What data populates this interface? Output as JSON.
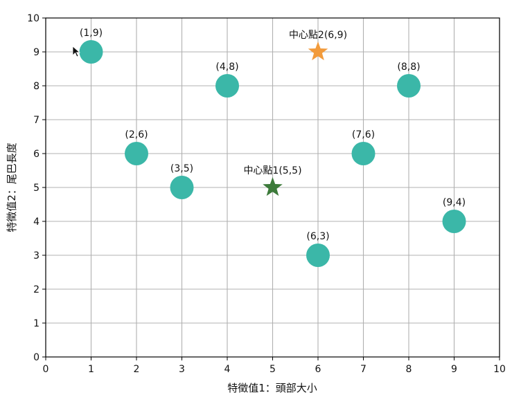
{
  "chart_data": {
    "type": "scatter",
    "xlabel": "特徵值1：頭部大小",
    "ylabel": "特徵值2：尾巴長度",
    "xlim": [
      0,
      10
    ],
    "ylim": [
      0,
      10
    ],
    "xticks": [
      0,
      1,
      2,
      3,
      4,
      5,
      6,
      7,
      8,
      9,
      10
    ],
    "yticks": [
      0,
      1,
      2,
      3,
      4,
      5,
      6,
      7,
      8,
      9,
      10
    ],
    "grid": true,
    "colors": {
      "points": "#3bb7a8",
      "center1": "#3c7a3a",
      "center2": "#f29b3c",
      "grid": "#b0b0b0",
      "axes": "#000000"
    },
    "series": [
      {
        "marker": "circle",
        "points": [
          {
            "x": 1,
            "y": 9,
            "label": "(1,9)"
          },
          {
            "x": 2,
            "y": 6,
            "label": "(2,6)"
          },
          {
            "x": 3,
            "y": 5,
            "label": "(3,5)"
          },
          {
            "x": 4,
            "y": 8,
            "label": "(4,8)"
          },
          {
            "x": 6,
            "y": 3,
            "label": "(6,3)"
          },
          {
            "x": 7,
            "y": 6,
            "label": "(7,6)"
          },
          {
            "x": 8,
            "y": 8,
            "label": "(8,8)"
          },
          {
            "x": 9,
            "y": 4,
            "label": "(9,4)"
          }
        ]
      },
      {
        "marker": "star",
        "color_key": "center1",
        "points": [
          {
            "x": 5,
            "y": 5,
            "label": "中心點1(5,5)"
          }
        ]
      },
      {
        "marker": "star",
        "color_key": "center2",
        "points": [
          {
            "x": 6,
            "y": 9,
            "label": "中心點2(6,9)"
          }
        ]
      }
    ]
  },
  "cursor": {
    "icon": "mouse-pointer-icon"
  }
}
